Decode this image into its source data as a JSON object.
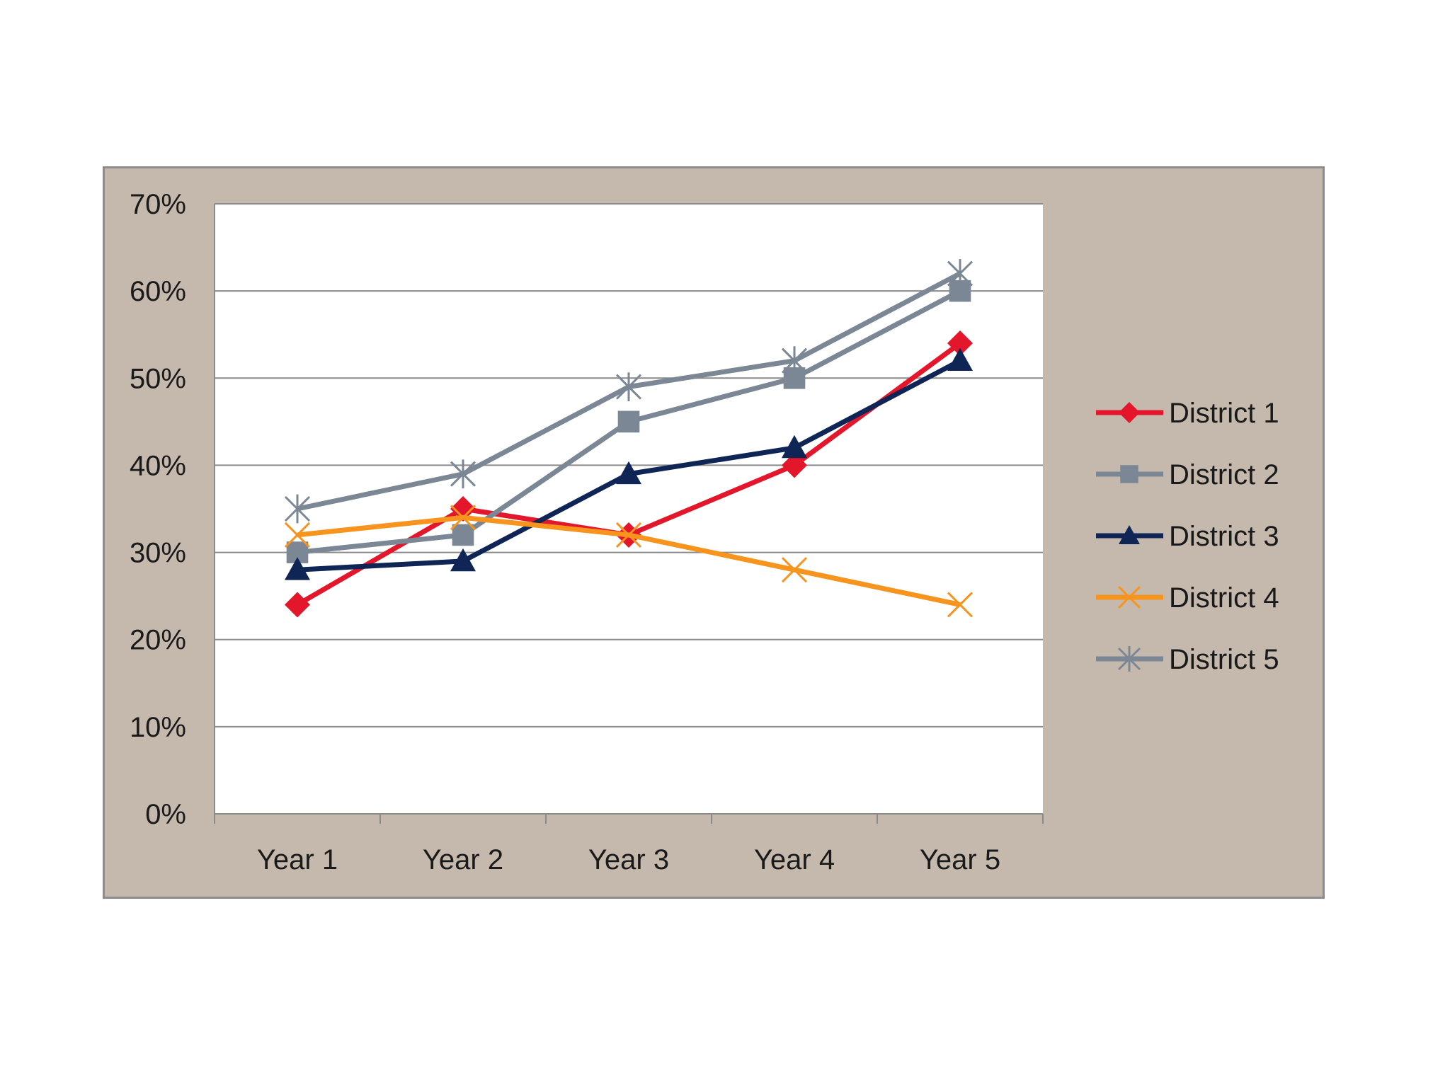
{
  "chart_data": {
    "type": "line",
    "title": "",
    "xlabel": "",
    "ylabel": "",
    "categories": [
      "Year 1",
      "Year 2",
      "Year 3",
      "Year 4",
      "Year 5"
    ],
    "ylim": [
      0,
      0.7
    ],
    "yticks": [
      0,
      0.1,
      0.2,
      0.3,
      0.4,
      0.5,
      0.6,
      0.7
    ],
    "ytick_labels": [
      "0%",
      "10%",
      "20%",
      "30%",
      "40%",
      "50%",
      "60%",
      "70%"
    ],
    "grid": "horizontal",
    "legend_position": "right",
    "series": [
      {
        "name": "District 1",
        "color": "#e3162b",
        "marker": "diamond",
        "values": [
          0.24,
          0.35,
          0.32,
          0.4,
          0.54
        ]
      },
      {
        "name": "District 2",
        "color": "#7b8794",
        "marker": "square",
        "values": [
          0.3,
          0.32,
          0.45,
          0.5,
          0.6
        ]
      },
      {
        "name": "District 3",
        "color": "#0f2555",
        "marker": "triangle",
        "values": [
          0.28,
          0.29,
          0.39,
          0.42,
          0.52
        ]
      },
      {
        "name": "District 4",
        "color": "#f7941d",
        "marker": "x",
        "values": [
          0.32,
          0.34,
          0.32,
          0.28,
          0.24
        ]
      },
      {
        "name": "District 5",
        "color": "#7b8794",
        "marker": "star",
        "values": [
          0.35,
          0.39,
          0.49,
          0.52,
          0.62
        ]
      }
    ]
  }
}
